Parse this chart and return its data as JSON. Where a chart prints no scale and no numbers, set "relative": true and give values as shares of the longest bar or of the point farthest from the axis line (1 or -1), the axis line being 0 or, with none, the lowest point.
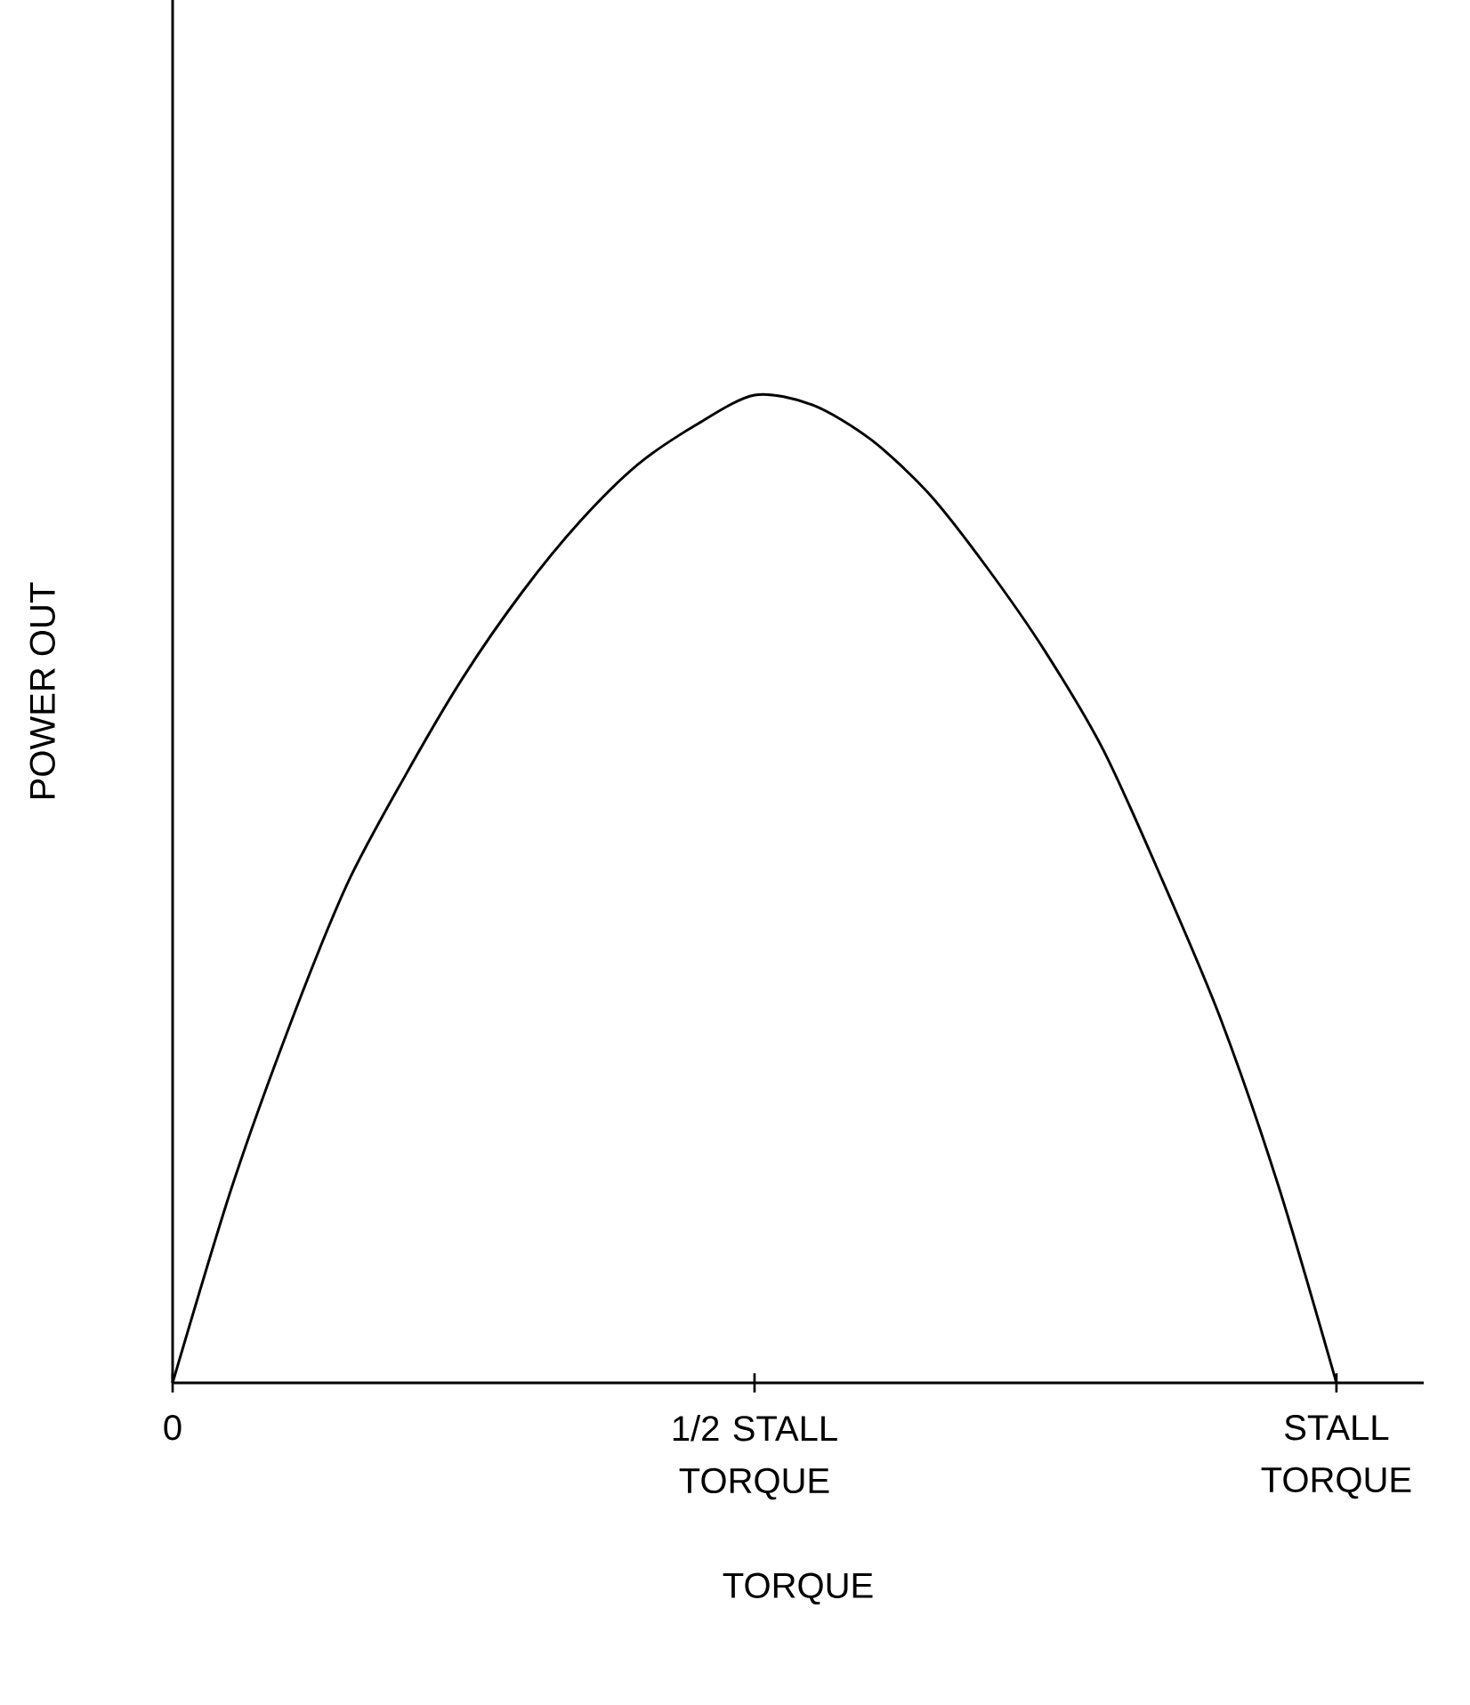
{
  "chart_data": {
    "type": "line",
    "xlabel": "TORQUE",
    "ylabel": "POWER OUT",
    "relative": true,
    "tick_labels": "x",
    "categories": [
      "0",
      null,
      null,
      null,
      null,
      null,
      null,
      null,
      null,
      null,
      "1/2 STALL TORQUE",
      null,
      null,
      null,
      null,
      null,
      null,
      null,
      null,
      null,
      "STALL TORQUE"
    ],
    "series": [
      {
        "color": "#000000",
        "values": [
          0,
          0.195,
          0.36,
          0.505,
          0.615,
          0.715,
          0.8,
          0.872,
          0.93,
          0.97,
          1,
          0.99,
          0.955,
          0.9,
          0.825,
          0.74,
          0.64,
          0.51,
          0.37,
          0.2,
          0
        ]
      }
    ]
  }
}
